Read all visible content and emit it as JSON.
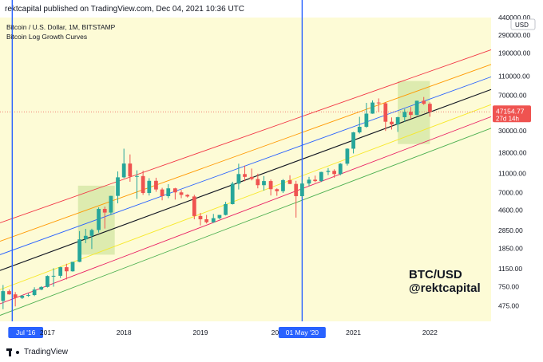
{
  "header": {
    "published": "rektcapital published on TradingView.com, Dec 04, 2021 10:36 UTC"
  },
  "legend": {
    "symbol": "Bitcoin / U.S. Dollar, 1M, BITSTAMP",
    "indicator": "Bitcoin Log Growth Curves"
  },
  "watermark": {
    "line1": "BTC/USD",
    "line2": "@rektcapital"
  },
  "currency": "USD",
  "price_label": {
    "value": "47154.77",
    "countdown": "27d 14h"
  },
  "footer": {
    "brand": "TradingView"
  },
  "markers": [
    {
      "label": "Jul '16",
      "t": 2016.54
    },
    {
      "label": "01 May '20",
      "t": 2020.33
    }
  ],
  "colors": {
    "background": "#fdfbd6",
    "bull": "#26a69a",
    "bear": "#ef5350",
    "marker": "#2962ff"
  },
  "chart_data": {
    "type": "candlestick",
    "title": "Bitcoin / U.S. Dollar, 1M, BITSTAMP",
    "x_axis": {
      "range": [
        2016.38,
        2022.8
      ],
      "ticks": [
        {
          "label": "Jul '16",
          "t": 2016.54
        },
        {
          "label": "2017",
          "t": 2017.0
        },
        {
          "label": "2018",
          "t": 2018.0
        },
        {
          "label": "2019",
          "t": 2019.0
        },
        {
          "label": "202",
          "t": 2020.0
        },
        {
          "label": "01 May '20",
          "t": 2020.33
        },
        {
          "label": "2021",
          "t": 2021.0
        },
        {
          "label": "2022",
          "t": 2022.0
        }
      ]
    },
    "y_axis": {
      "scale": "log",
      "range": [
        330,
        440000
      ],
      "ticks": [
        {
          "label": "440000.00",
          "v": 440000
        },
        {
          "label": "290000.00",
          "v": 290000
        },
        {
          "label": "190000.00",
          "v": 190000
        },
        {
          "label": "110000.00",
          "v": 110000
        },
        {
          "label": "70000.00",
          "v": 70000
        },
        {
          "label": "47154.77",
          "v": 47154.77
        },
        {
          "label": "30000.00",
          "v": 30000
        },
        {
          "label": "18000.00",
          "v": 18000
        },
        {
          "label": "11000.00",
          "v": 11000
        },
        {
          "label": "7000.00",
          "v": 7000
        },
        {
          "label": "4600.00",
          "v": 4600
        },
        {
          "label": "2850.00",
          "v": 2850
        },
        {
          "label": "1850.00",
          "v": 1850
        },
        {
          "label": "1150.00",
          "v": 1150
        },
        {
          "label": "750.00",
          "v": 750
        },
        {
          "label": "475.00",
          "v": 475
        }
      ]
    },
    "curves": [
      {
        "color": "#f23645",
        "points": [
          [
            2016.38,
            3400
          ],
          [
            2022.8,
            205000
          ]
        ]
      },
      {
        "color": "#ff9800",
        "points": [
          [
            2016.38,
            2200
          ],
          [
            2022.8,
            145000
          ]
        ]
      },
      {
        "color": "#2962ff",
        "points": [
          [
            2016.38,
            1600
          ],
          [
            2022.8,
            108000
          ]
        ]
      },
      {
        "color": "#131722",
        "points": [
          [
            2016.38,
            1100
          ],
          [
            2022.8,
            80000
          ]
        ]
      },
      {
        "color": "#f7e829",
        "points": [
          [
            2016.38,
            700
          ],
          [
            2022.8,
            56000
          ]
        ]
      },
      {
        "color": "#e91e63",
        "points": [
          [
            2016.38,
            500
          ],
          [
            2022.8,
            42000
          ]
        ]
      },
      {
        "color": "#4caf50",
        "points": [
          [
            2016.38,
            380
          ],
          [
            2022.8,
            32000
          ]
        ]
      }
    ],
    "zones": [
      {
        "t0": 2017.4,
        "t1": 2017.88,
        "v0": 1600,
        "v1": 8200
      },
      {
        "t0": 2021.58,
        "t1": 2022.0,
        "v0": 22000,
        "v1": 98000
      }
    ],
    "candles": [
      {
        "t": 2016.42,
        "o": 535,
        "h": 780,
        "l": 440,
        "c": 675
      },
      {
        "t": 2016.5,
        "o": 675,
        "h": 700,
        "l": 620,
        "c": 625
      },
      {
        "t": 2016.58,
        "o": 625,
        "h": 660,
        "l": 470,
        "c": 575
      },
      {
        "t": 2016.67,
        "o": 575,
        "h": 615,
        "l": 560,
        "c": 605
      },
      {
        "t": 2016.75,
        "o": 605,
        "h": 640,
        "l": 590,
        "c": 615
      },
      {
        "t": 2016.83,
        "o": 615,
        "h": 740,
        "l": 600,
        "c": 700
      },
      {
        "t": 2016.92,
        "o": 700,
        "h": 760,
        "l": 690,
        "c": 745
      },
      {
        "t": 2017.0,
        "o": 745,
        "h": 980,
        "l": 735,
        "c": 965
      },
      {
        "t": 2017.08,
        "o": 965,
        "h": 1160,
        "l": 750,
        "c": 970
      },
      {
        "t": 2017.17,
        "o": 970,
        "h": 1200,
        "l": 920,
        "c": 1190
      },
      {
        "t": 2017.25,
        "o": 1190,
        "h": 1290,
        "l": 890,
        "c": 1080
      },
      {
        "t": 2017.33,
        "o": 1080,
        "h": 1350,
        "l": 1070,
        "c": 1350
      },
      {
        "t": 2017.42,
        "o": 1350,
        "h": 2800,
        "l": 1340,
        "c": 2300
      },
      {
        "t": 2017.5,
        "o": 2300,
        "h": 2950,
        "l": 2100,
        "c": 2500
      },
      {
        "t": 2017.58,
        "o": 2500,
        "h": 2960,
        "l": 1830,
        "c": 2870
      },
      {
        "t": 2017.67,
        "o": 2870,
        "h": 4900,
        "l": 2700,
        "c": 4730
      },
      {
        "t": 2017.75,
        "o": 4730,
        "h": 5000,
        "l": 2970,
        "c": 4340
      },
      {
        "t": 2017.83,
        "o": 4340,
        "h": 6450,
        "l": 4100,
        "c": 6440
      },
      {
        "t": 2017.92,
        "o": 6440,
        "h": 11500,
        "l": 5400,
        "c": 10000
      },
      {
        "t": 2018.0,
        "o": 10000,
        "h": 19700,
        "l": 9800,
        "c": 13860
      },
      {
        "t": 2018.08,
        "o": 13860,
        "h": 17200,
        "l": 9000,
        "c": 10200
      },
      {
        "t": 2018.17,
        "o": 10200,
        "h": 11800,
        "l": 6000,
        "c": 10300
      },
      {
        "t": 2018.25,
        "o": 10300,
        "h": 11700,
        "l": 6600,
        "c": 6900
      },
      {
        "t": 2018.33,
        "o": 6900,
        "h": 9800,
        "l": 6500,
        "c": 9200
      },
      {
        "t": 2018.42,
        "o": 9200,
        "h": 9900,
        "l": 7100,
        "c": 7500
      },
      {
        "t": 2018.5,
        "o": 7500,
        "h": 7800,
        "l": 5800,
        "c": 6400
      },
      {
        "t": 2018.58,
        "o": 6400,
        "h": 8500,
        "l": 6100,
        "c": 7700
      },
      {
        "t": 2018.67,
        "o": 7700,
        "h": 7800,
        "l": 5900,
        "c": 7000
      },
      {
        "t": 2018.75,
        "o": 7000,
        "h": 7400,
        "l": 6100,
        "c": 6600
      },
      {
        "t": 2018.83,
        "o": 6600,
        "h": 6700,
        "l": 6200,
        "c": 6350
      },
      {
        "t": 2018.92,
        "o": 6350,
        "h": 6600,
        "l": 3700,
        "c": 4000
      },
      {
        "t": 2019.0,
        "o": 4000,
        "h": 4300,
        "l": 3200,
        "c": 3700
      },
      {
        "t": 2019.08,
        "o": 3700,
        "h": 4100,
        "l": 3350,
        "c": 3450
      },
      {
        "t": 2019.17,
        "o": 3450,
        "h": 4200,
        "l": 3400,
        "c": 3800
      },
      {
        "t": 2019.25,
        "o": 3800,
        "h": 4100,
        "l": 3700,
        "c": 4100
      },
      {
        "t": 2019.33,
        "o": 4100,
        "h": 5600,
        "l": 4050,
        "c": 5300
      },
      {
        "t": 2019.42,
        "o": 5300,
        "h": 9000,
        "l": 5250,
        "c": 8600
      },
      {
        "t": 2019.5,
        "o": 8600,
        "h": 13800,
        "l": 7500,
        "c": 10800
      },
      {
        "t": 2019.58,
        "o": 10800,
        "h": 13200,
        "l": 9100,
        "c": 10100
      },
      {
        "t": 2019.67,
        "o": 10100,
        "h": 12300,
        "l": 9300,
        "c": 9600
      },
      {
        "t": 2019.75,
        "o": 9600,
        "h": 10900,
        "l": 7700,
        "c": 8300
      },
      {
        "t": 2019.83,
        "o": 8300,
        "h": 10300,
        "l": 7300,
        "c": 9150
      },
      {
        "t": 2019.92,
        "o": 9150,
        "h": 9500,
        "l": 6500,
        "c": 7550
      },
      {
        "t": 2020.0,
        "o": 7550,
        "h": 7700,
        "l": 6450,
        "c": 7200
      },
      {
        "t": 2020.08,
        "o": 7200,
        "h": 9600,
        "l": 6900,
        "c": 9350
      },
      {
        "t": 2020.17,
        "o": 9350,
        "h": 10500,
        "l": 8500,
        "c": 8550
      },
      {
        "t": 2020.25,
        "o": 8550,
        "h": 9200,
        "l": 3850,
        "c": 6400
      },
      {
        "t": 2020.33,
        "o": 6400,
        "h": 9500,
        "l": 6200,
        "c": 8630
      },
      {
        "t": 2020.42,
        "o": 8630,
        "h": 10100,
        "l": 8100,
        "c": 9450
      },
      {
        "t": 2020.5,
        "o": 9450,
        "h": 10400,
        "l": 8900,
        "c": 9150
      },
      {
        "t": 2020.58,
        "o": 9150,
        "h": 11400,
        "l": 8950,
        "c": 11350
      },
      {
        "t": 2020.67,
        "o": 11350,
        "h": 12450,
        "l": 10550,
        "c": 11650
      },
      {
        "t": 2020.75,
        "o": 11650,
        "h": 12100,
        "l": 9900,
        "c": 10800
      },
      {
        "t": 2020.83,
        "o": 10800,
        "h": 14000,
        "l": 10500,
        "c": 13800
      },
      {
        "t": 2020.92,
        "o": 13800,
        "h": 19900,
        "l": 13200,
        "c": 19700
      },
      {
        "t": 2021.0,
        "o": 19700,
        "h": 29300,
        "l": 17600,
        "c": 29000
      },
      {
        "t": 2021.08,
        "o": 29000,
        "h": 41900,
        "l": 28200,
        "c": 33100
      },
      {
        "t": 2021.17,
        "o": 33100,
        "h": 58300,
        "l": 32300,
        "c": 45200
      },
      {
        "t": 2021.25,
        "o": 45200,
        "h": 61800,
        "l": 45000,
        "c": 58800
      },
      {
        "t": 2021.33,
        "o": 58800,
        "h": 64800,
        "l": 47000,
        "c": 57700
      },
      {
        "t": 2021.42,
        "o": 57700,
        "h": 59500,
        "l": 30000,
        "c": 37300
      },
      {
        "t": 2021.5,
        "o": 37300,
        "h": 41300,
        "l": 31000,
        "c": 35000
      },
      {
        "t": 2021.58,
        "o": 35000,
        "h": 42000,
        "l": 29300,
        "c": 41500
      },
      {
        "t": 2021.67,
        "o": 41500,
        "h": 50500,
        "l": 37300,
        "c": 47100
      },
      {
        "t": 2021.75,
        "o": 47100,
        "h": 52900,
        "l": 40000,
        "c": 43800
      },
      {
        "t": 2021.83,
        "o": 43800,
        "h": 61500,
        "l": 43300,
        "c": 61300
      },
      {
        "t": 2021.92,
        "o": 61300,
        "h": 67000,
        "l": 55600,
        "c": 57000
      },
      {
        "t": 2022.0,
        "o": 57000,
        "h": 59100,
        "l": 42000,
        "c": 47154.77
      }
    ]
  }
}
